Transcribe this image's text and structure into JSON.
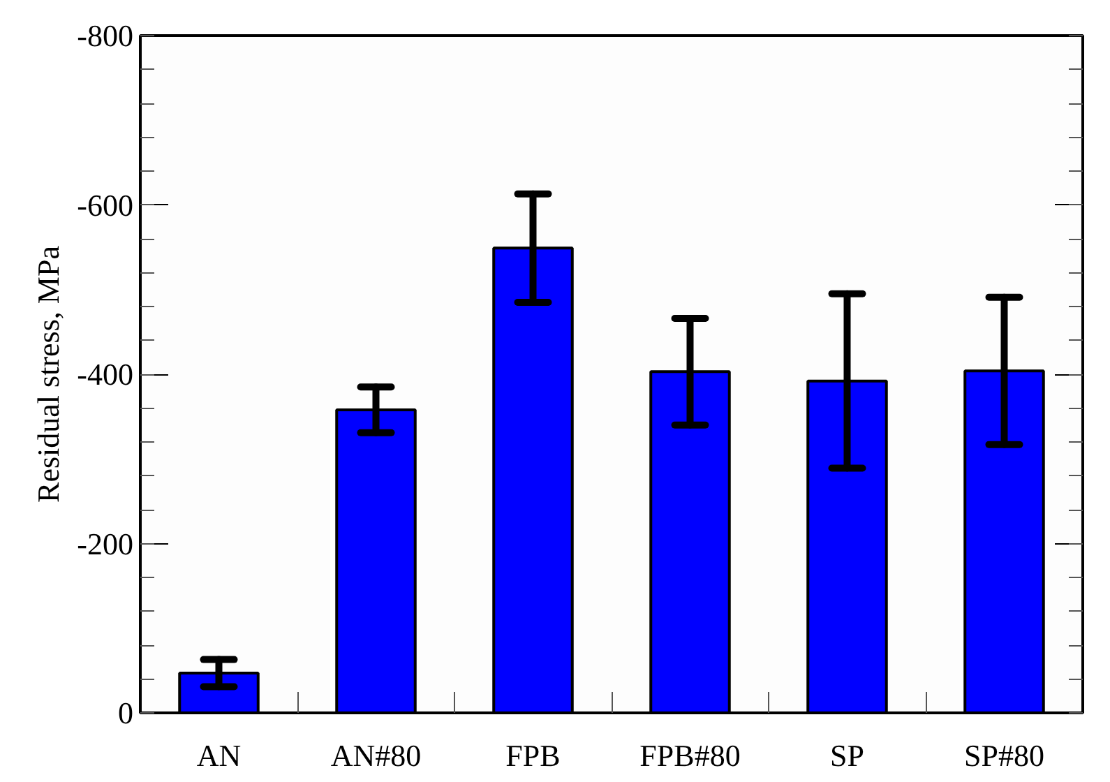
{
  "chart_data": {
    "type": "bar",
    "ylabel": "Residual stress, MPa",
    "categories": [
      "AN",
      "AN#80",
      "FPB",
      "FPB#80",
      "SP",
      "SP#80"
    ],
    "values": [
      -47,
      -358,
      -549,
      -403,
      -392,
      -404
    ],
    "errors": [
      16,
      27,
      64,
      63,
      103,
      87
    ],
    "color": "#0000ff",
    "ylim": [
      0,
      -800
    ],
    "yticks": [
      0,
      {
        "value": -200,
        "label": "-200"
      },
      {
        "value": -400,
        "label": "-400"
      },
      {
        "value": -600,
        "label": "-600"
      },
      {
        "value": -800,
        "label": "-800"
      }
    ],
    "grid": false
  }
}
